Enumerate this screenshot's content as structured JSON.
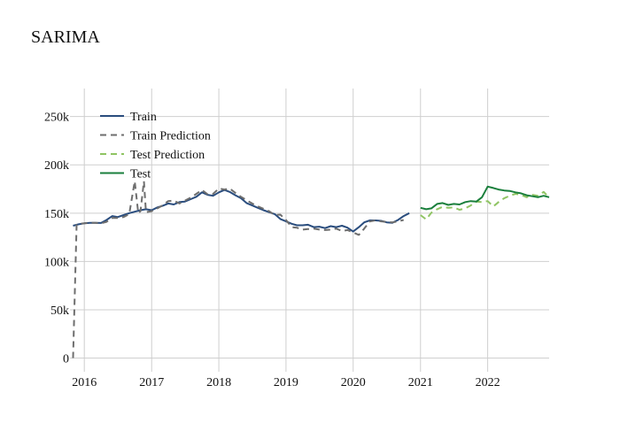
{
  "chart_data": {
    "type": "line",
    "title": "SARIMA",
    "xlabel": "",
    "ylabel": "",
    "x_range": [
      "2015-10-15",
      "2022-12-01"
    ],
    "ylim": [
      -5000,
      290000
    ],
    "x_ticks": [
      {
        "label": "2016",
        "date": "2016-01-01"
      },
      {
        "label": "2017",
        "date": "2017-01-01"
      },
      {
        "label": "2018",
        "date": "2018-01-01"
      },
      {
        "label": "2019",
        "date": "2019-01-01"
      },
      {
        "label": "2020",
        "date": "2020-01-01"
      },
      {
        "label": "2021",
        "date": "2021-01-01"
      },
      {
        "label": "2022",
        "date": "2022-01-01"
      }
    ],
    "y_ticks": [
      {
        "label": "0",
        "value": 0
      },
      {
        "label": "50k",
        "value": 50000
      },
      {
        "label": "100k",
        "value": 100000
      },
      {
        "label": "150k",
        "value": 150000
      },
      {
        "label": "200k",
        "value": 200000
      },
      {
        "label": "250k",
        "value": 250000
      }
    ],
    "grid": true,
    "legend_position": "top-left",
    "series": [
      {
        "name": "Train",
        "color": "#2a4d7e",
        "dash": "solid",
        "points": [
          [
            "2015-11-01",
            137000
          ],
          [
            "2015-12-01",
            138500
          ],
          [
            "2016-01-01",
            139500
          ],
          [
            "2016-02-01",
            140000
          ],
          [
            "2016-03-01",
            140000
          ],
          [
            "2016-04-01",
            139800
          ],
          [
            "2016-05-01",
            143000
          ],
          [
            "2016-06-01",
            147000
          ],
          [
            "2016-07-01",
            146000
          ],
          [
            "2016-08-01",
            148000
          ],
          [
            "2016-09-01",
            150000
          ],
          [
            "2016-10-01",
            151500
          ],
          [
            "2016-11-01",
            153000
          ],
          [
            "2016-12-01",
            154000
          ],
          [
            "2017-01-01",
            153000
          ],
          [
            "2017-02-01",
            156000
          ],
          [
            "2017-03-01",
            157500
          ],
          [
            "2017-04-01",
            160000
          ],
          [
            "2017-05-01",
            159000
          ],
          [
            "2017-06-01",
            161500
          ],
          [
            "2017-07-01",
            162000
          ],
          [
            "2017-08-01",
            164500
          ],
          [
            "2017-09-01",
            167000
          ],
          [
            "2017-10-01",
            171500
          ],
          [
            "2017-11-01",
            169000
          ],
          [
            "2017-12-01",
            168000
          ],
          [
            "2018-01-01",
            171500
          ],
          [
            "2018-02-01",
            174000
          ],
          [
            "2018-03-01",
            172000
          ],
          [
            "2018-04-01",
            168500
          ],
          [
            "2018-05-01",
            165500
          ],
          [
            "2018-06-01",
            160500
          ],
          [
            "2018-07-01",
            158000
          ],
          [
            "2018-08-01",
            155500
          ],
          [
            "2018-09-01",
            153000
          ],
          [
            "2018-10-01",
            151000
          ],
          [
            "2018-11-01",
            149000
          ],
          [
            "2018-12-01",
            144000
          ],
          [
            "2019-01-01",
            141500
          ],
          [
            "2019-02-01",
            139000
          ],
          [
            "2019-03-01",
            137500
          ],
          [
            "2019-04-01",
            137500
          ],
          [
            "2019-05-01",
            138000
          ],
          [
            "2019-06-01",
            135500
          ],
          [
            "2019-07-01",
            136000
          ],
          [
            "2019-08-01",
            134500
          ],
          [
            "2019-09-01",
            136500
          ],
          [
            "2019-10-01",
            135500
          ],
          [
            "2019-11-01",
            137000
          ],
          [
            "2019-12-01",
            135000
          ],
          [
            "2020-01-01",
            131000
          ],
          [
            "2020-02-01",
            135500
          ],
          [
            "2020-03-01",
            140500
          ],
          [
            "2020-04-01",
            142500
          ],
          [
            "2020-05-01",
            142500
          ],
          [
            "2020-06-01",
            142000
          ],
          [
            "2020-07-01",
            140500
          ],
          [
            "2020-08-01",
            140000
          ],
          [
            "2020-09-01",
            143000
          ],
          [
            "2020-10-01",
            147000
          ],
          [
            "2020-11-01",
            150000
          ]
        ]
      },
      {
        "name": "Train Prediction",
        "color": "#6e6e6e",
        "dash": "dashed",
        "points": [
          [
            "2015-11-01",
            0
          ],
          [
            "2015-11-20",
            138000
          ],
          [
            "2015-12-01",
            139000
          ],
          [
            "2016-01-01",
            139500
          ],
          [
            "2016-02-01",
            140000
          ],
          [
            "2016-03-01",
            140000
          ],
          [
            "2016-04-01",
            139500
          ],
          [
            "2016-05-01",
            141000
          ],
          [
            "2016-06-01",
            145000
          ],
          [
            "2016-07-01",
            145000
          ],
          [
            "2016-08-01",
            146000
          ],
          [
            "2016-09-01",
            149000
          ],
          [
            "2016-10-01",
            183000
          ],
          [
            "2016-10-20",
            150000
          ],
          [
            "2016-11-01",
            152000
          ],
          [
            "2016-11-20",
            183000
          ],
          [
            "2016-12-01",
            151000
          ],
          [
            "2017-01-01",
            152000
          ],
          [
            "2017-02-01",
            155000
          ],
          [
            "2017-03-01",
            158000
          ],
          [
            "2017-04-01",
            162500
          ],
          [
            "2017-05-01",
            163000
          ],
          [
            "2017-06-01",
            160000
          ],
          [
            "2017-07-01",
            163000
          ],
          [
            "2017-08-01",
            166000
          ],
          [
            "2017-09-01",
            170000
          ],
          [
            "2017-10-01",
            174000
          ],
          [
            "2017-11-01",
            169500
          ],
          [
            "2017-12-01",
            170000
          ],
          [
            "2018-01-01",
            175500
          ],
          [
            "2018-02-01",
            174500
          ],
          [
            "2018-03-01",
            175500
          ],
          [
            "2018-04-01",
            171000
          ],
          [
            "2018-05-01",
            167000
          ],
          [
            "2018-06-01",
            163500
          ],
          [
            "2018-07-01",
            160000
          ],
          [
            "2018-08-01",
            157000
          ],
          [
            "2018-09-01",
            154500
          ],
          [
            "2018-10-01",
            152000
          ],
          [
            "2018-11-01",
            148000
          ],
          [
            "2018-12-01",
            148500
          ],
          [
            "2019-01-01",
            143000
          ],
          [
            "2019-02-01",
            135500
          ],
          [
            "2019-03-01",
            135000
          ],
          [
            "2019-04-01",
            133000
          ],
          [
            "2019-05-01",
            133500
          ],
          [
            "2019-06-01",
            134000
          ],
          [
            "2019-07-01",
            133000
          ],
          [
            "2019-08-01",
            132500
          ],
          [
            "2019-09-01",
            133000
          ],
          [
            "2019-10-01",
            134000
          ],
          [
            "2019-11-01",
            131500
          ],
          [
            "2019-12-01",
            132500
          ],
          [
            "2020-01-01",
            130000
          ],
          [
            "2020-02-01",
            127500
          ],
          [
            "2020-03-01",
            134000
          ],
          [
            "2020-04-01",
            141500
          ],
          [
            "2020-05-01",
            142500
          ],
          [
            "2020-06-01",
            141500
          ],
          [
            "2020-07-01",
            141000
          ],
          [
            "2020-08-01",
            140500
          ],
          [
            "2020-09-01",
            141500
          ],
          [
            "2020-10-01",
            143000
          ]
        ]
      },
      {
        "name": "Test Prediction",
        "color": "#8fc463",
        "dash": "dashed",
        "points": [
          [
            "2021-01-01",
            148000
          ],
          [
            "2021-02-01",
            143500
          ],
          [
            "2021-03-01",
            150500
          ],
          [
            "2021-04-01",
            154000
          ],
          [
            "2021-05-01",
            156500
          ],
          [
            "2021-06-01",
            155500
          ],
          [
            "2021-07-01",
            156000
          ],
          [
            "2021-08-01",
            153500
          ],
          [
            "2021-09-01",
            155000
          ],
          [
            "2021-10-01",
            158000
          ],
          [
            "2021-11-01",
            162000
          ],
          [
            "2021-12-01",
            161500
          ],
          [
            "2022-01-01",
            162500
          ],
          [
            "2022-02-01",
            157000
          ],
          [
            "2022-03-01",
            161500
          ],
          [
            "2022-04-01",
            165500
          ],
          [
            "2022-05-01",
            168000
          ],
          [
            "2022-06-01",
            170000
          ],
          [
            "2022-07-01",
            169000
          ],
          [
            "2022-08-01",
            166500
          ],
          [
            "2022-09-01",
            169000
          ],
          [
            "2022-10-01",
            168000
          ],
          [
            "2022-11-01",
            172000
          ],
          [
            "2022-12-01",
            166000
          ]
        ]
      },
      {
        "name": "Test",
        "color": "#1a7f3c",
        "dash": "solid",
        "points": [
          [
            "2021-01-01",
            155500
          ],
          [
            "2021-02-01",
            154000
          ],
          [
            "2021-03-01",
            155000
          ],
          [
            "2021-04-01",
            159500
          ],
          [
            "2021-05-01",
            160500
          ],
          [
            "2021-06-01",
            158500
          ],
          [
            "2021-07-01",
            159500
          ],
          [
            "2021-08-01",
            159000
          ],
          [
            "2021-09-01",
            161500
          ],
          [
            "2021-10-01",
            162500
          ],
          [
            "2021-11-01",
            162000
          ],
          [
            "2021-12-01",
            166500
          ],
          [
            "2022-01-01",
            177500
          ],
          [
            "2022-02-01",
            176000
          ],
          [
            "2022-03-01",
            174500
          ],
          [
            "2022-04-01",
            173500
          ],
          [
            "2022-05-01",
            173000
          ],
          [
            "2022-06-01",
            171500
          ],
          [
            "2022-07-01",
            170500
          ],
          [
            "2022-08-01",
            168500
          ],
          [
            "2022-09-01",
            167500
          ],
          [
            "2022-10-01",
            166500
          ],
          [
            "2022-11-01",
            168000
          ],
          [
            "2022-12-01",
            166500
          ]
        ]
      }
    ]
  }
}
